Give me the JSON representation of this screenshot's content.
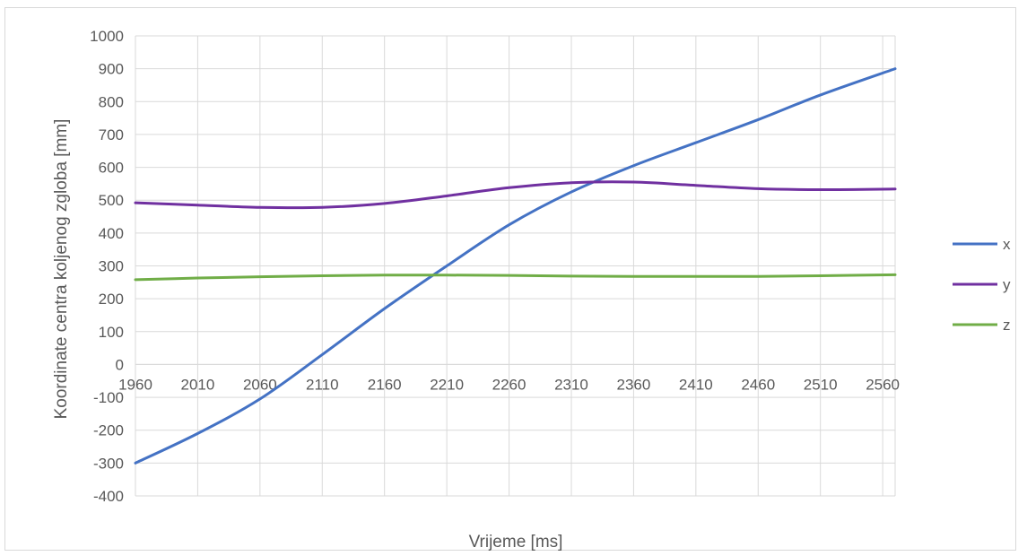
{
  "chart_data": {
    "type": "line",
    "title": "",
    "xlabel": "Vrijeme [ms]",
    "ylabel": "Koordinate centra koljenog zgloba [mm]",
    "xlim": [
      1960,
      2570
    ],
    "ylim": [
      -400,
      1000
    ],
    "x_ticks": [
      1960,
      2010,
      2060,
      2110,
      2160,
      2210,
      2260,
      2310,
      2360,
      2410,
      2460,
      2510,
      2560
    ],
    "y_ticks": [
      -400,
      -300,
      -200,
      -100,
      0,
      100,
      200,
      300,
      400,
      500,
      600,
      700,
      800,
      900,
      1000
    ],
    "grid": true,
    "legend_position": "right",
    "x": [
      1960,
      2010,
      2060,
      2110,
      2160,
      2210,
      2260,
      2310,
      2360,
      2410,
      2460,
      2510,
      2570
    ],
    "series": [
      {
        "name": "x",
        "color": "#4472c4",
        "values": [
          -300,
          -210,
          -105,
          30,
          170,
          300,
          425,
          525,
          605,
          675,
          745,
          820,
          900
        ]
      },
      {
        "name": "y",
        "color": "#7030a0",
        "values": [
          492,
          485,
          478,
          478,
          490,
          513,
          538,
          553,
          555,
          545,
          535,
          532,
          534
        ]
      },
      {
        "name": "z",
        "color": "#70ad47",
        "values": [
          258,
          263,
          267,
          270,
          272,
          272,
          271,
          269,
          268,
          268,
          268,
          270,
          273
        ]
      }
    ]
  }
}
